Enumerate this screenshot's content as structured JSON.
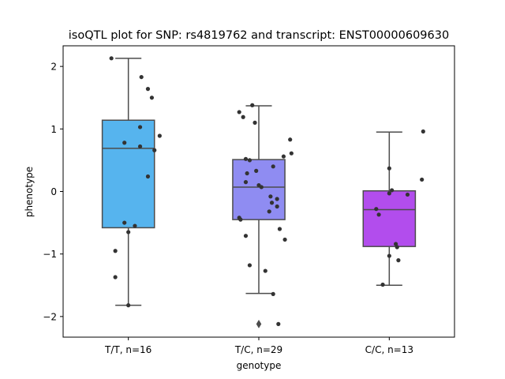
{
  "chart_data": {
    "type": "box",
    "title": "isoQTL plot for SNP: rs4819762 and transcript: ENST00000609630",
    "xlabel": "genotype",
    "ylabel": "phenotype",
    "ylim": [
      -2.33,
      2.33
    ],
    "yticks": [
      2,
      1,
      0,
      -1,
      -2
    ],
    "ytick_labels": [
      "2",
      "1",
      "0",
      "−1",
      "−2"
    ],
    "grid": false,
    "colors": {
      "axis": "#000000",
      "whisker": "#4c4c4c",
      "point": "#333333"
    },
    "categories": [
      "T/T, n=16",
      "T/C, n=29",
      "C/C, n=13"
    ],
    "boxes": [
      {
        "label": "T/T, n=16",
        "color": "#56b4ee",
        "whisker_low": -1.82,
        "q1": -0.58,
        "median": 0.69,
        "q3": 1.14,
        "whisker_high": 2.13,
        "outliers": [],
        "points": [
          [
            -0.13,
            2.13
          ],
          [
            0.1,
            1.83
          ],
          [
            0.15,
            1.64
          ],
          [
            0.18,
            1.5
          ],
          [
            0.09,
            1.03
          ],
          [
            0.24,
            0.89
          ],
          [
            -0.03,
            0.78
          ],
          [
            0.09,
            0.72
          ],
          [
            0.2,
            0.66
          ],
          [
            0.15,
            0.24
          ],
          [
            -0.03,
            -0.5
          ],
          [
            0.05,
            -0.55
          ],
          [
            0.0,
            -0.65
          ],
          [
            -0.1,
            -0.95
          ],
          [
            -0.1,
            -1.37
          ],
          [
            0.0,
            -1.82
          ]
        ]
      },
      {
        "label": "T/C, n=29",
        "color": "#8f8cf2",
        "whisker_low": -1.63,
        "q1": -0.45,
        "median": 0.07,
        "q3": 0.51,
        "whisker_high": 1.37,
        "outliers": [
          -2.12
        ],
        "points": [
          [
            -0.05,
            1.38
          ],
          [
            -0.15,
            1.27
          ],
          [
            -0.12,
            1.19
          ],
          [
            -0.03,
            1.1
          ],
          [
            0.24,
            0.83
          ],
          [
            0.25,
            0.61
          ],
          [
            0.19,
            0.56
          ],
          [
            -0.07,
            0.5
          ],
          [
            -0.1,
            0.52
          ],
          [
            0.11,
            0.4
          ],
          [
            -0.02,
            0.33
          ],
          [
            -0.09,
            0.29
          ],
          [
            -0.1,
            0.15
          ],
          [
            0.0,
            0.1
          ],
          [
            0.02,
            0.07
          ],
          [
            0.09,
            -0.08
          ],
          [
            0.14,
            -0.12
          ],
          [
            0.1,
            -0.18
          ],
          [
            0.14,
            -0.24
          ],
          [
            0.08,
            -0.32
          ],
          [
            -0.15,
            -0.42
          ],
          [
            -0.14,
            -0.45
          ],
          [
            0.16,
            -0.6
          ],
          [
            0.2,
            -0.77
          ],
          [
            -0.1,
            -0.71
          ],
          [
            -0.07,
            -1.18
          ],
          [
            0.05,
            -1.27
          ],
          [
            0.11,
            -1.64
          ],
          [
            0.15,
            -2.12
          ]
        ]
      },
      {
        "label": "C/C, n=13",
        "color": "#b24ded",
        "whisker_low": -1.5,
        "q1": -0.88,
        "median": -0.29,
        "q3": 0.01,
        "whisker_high": 0.95,
        "outliers": [],
        "points": [
          [
            0.26,
            0.96
          ],
          [
            0.0,
            0.37
          ],
          [
            0.25,
            0.19
          ],
          [
            0.02,
            0.02
          ],
          [
            0.0,
            -0.03
          ],
          [
            0.14,
            -0.05
          ],
          [
            -0.1,
            -0.28
          ],
          [
            -0.08,
            -0.37
          ],
          [
            0.05,
            -0.84
          ],
          [
            0.06,
            -0.89
          ],
          [
            0.0,
            -1.03
          ],
          [
            0.07,
            -1.1
          ],
          [
            -0.05,
            -1.49
          ]
        ]
      }
    ]
  }
}
